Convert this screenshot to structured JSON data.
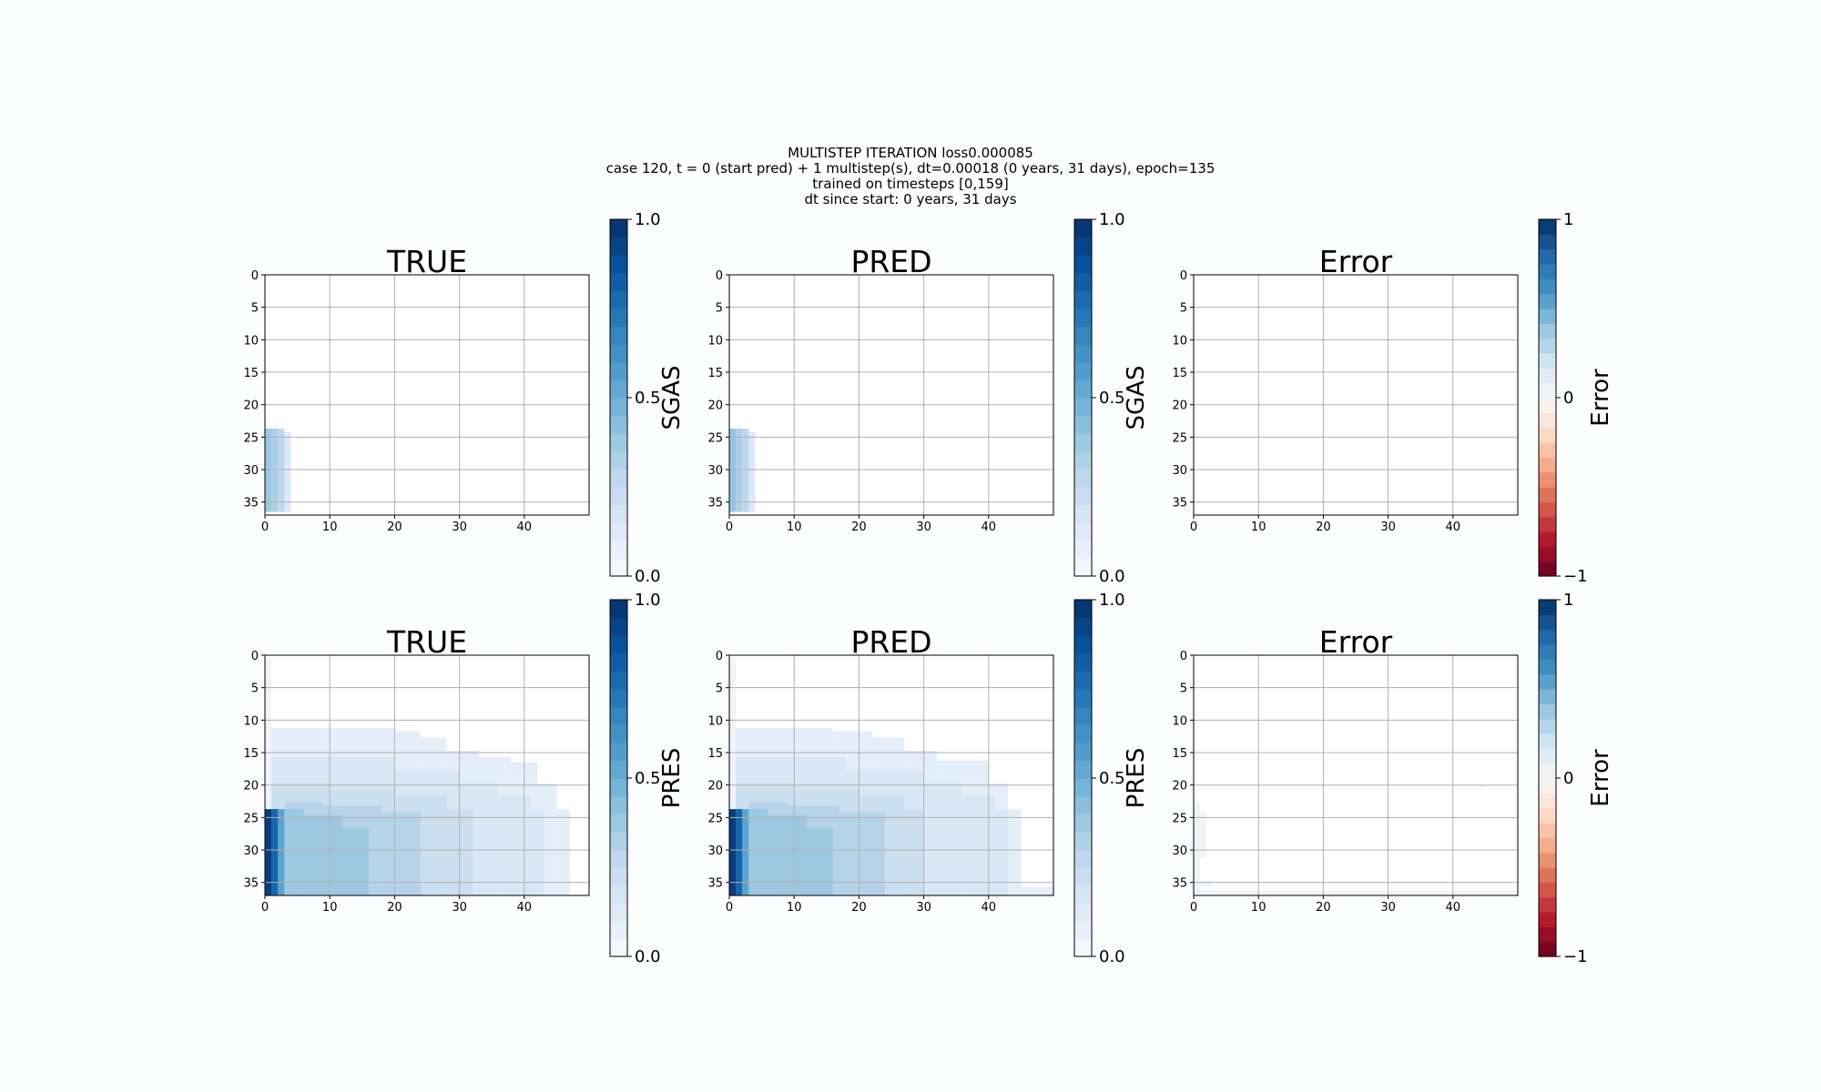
{
  "suptitle": {
    "line1": "MULTISTEP ITERATION loss0.000085",
    "line2": "case 120, t = 0 (start pred) + 1 multistep(s), dt=0.00018 (0 years, 31 days), epoch=135",
    "line3": "trained on timesteps [0,159]",
    "line4": "dt since start: 0 years, 31 days"
  },
  "colors": {
    "blues": [
      "#f7fbff",
      "#deebf7",
      "#c6dbef",
      "#9ecae1",
      "#6baed6",
      "#4292c6",
      "#2171b5",
      "#08519c",
      "#08306b"
    ],
    "rdbu": [
      "#67001f",
      "#b2182b",
      "#d6604d",
      "#f4a582",
      "#fddbc7",
      "#f7f7f7",
      "#d1e5f0",
      "#92c5de",
      "#4393c3",
      "#2166ac",
      "#053061"
    ],
    "grid": "#b0b0b0",
    "background": "#fcfdfe"
  },
  "chart_data": [
    {
      "type": "heatmap",
      "id": "sgas-true",
      "title": "TRUE",
      "xlim": [
        0,
        50
      ],
      "ylim": [
        37,
        0
      ],
      "xticks": [
        0,
        10,
        20,
        30,
        40
      ],
      "yticks": [
        0,
        5,
        10,
        15,
        20,
        25,
        30,
        35
      ],
      "colorbar": {
        "label": "SGAS",
        "ticks": [
          "0.0",
          "0.5",
          "1.0"
        ],
        "range": [
          0,
          1
        ],
        "cmap": "blues"
      },
      "regions": [
        {
          "x": [
            0,
            1
          ],
          "y": [
            23.7,
            36.5
          ],
          "value": 0.38
        },
        {
          "x": [
            1,
            2
          ],
          "y": [
            23.7,
            36.5
          ],
          "value": 0.34
        },
        {
          "x": [
            2,
            3
          ],
          "y": [
            23.7,
            36.5
          ],
          "value": 0.28
        },
        {
          "x": [
            3,
            4
          ],
          "y": [
            24.2,
            36.5
          ],
          "value": 0.14
        }
      ]
    },
    {
      "type": "heatmap",
      "id": "sgas-pred",
      "title": "PRED",
      "xlim": [
        0,
        50
      ],
      "ylim": [
        37,
        0
      ],
      "xticks": [
        0,
        10,
        20,
        30,
        40
      ],
      "yticks": [
        0,
        5,
        10,
        15,
        20,
        25,
        30,
        35
      ],
      "colorbar": {
        "label": "SGAS",
        "ticks": [
          "0.0",
          "0.5",
          "1.0"
        ],
        "range": [
          0,
          1
        ],
        "cmap": "blues"
      },
      "regions": [
        {
          "x": [
            0,
            1
          ],
          "y": [
            23.7,
            36.5
          ],
          "value": 0.4
        },
        {
          "x": [
            1,
            2
          ],
          "y": [
            23.7,
            36.5
          ],
          "value": 0.34
        },
        {
          "x": [
            2,
            3
          ],
          "y": [
            23.7,
            36.5
          ],
          "value": 0.28
        },
        {
          "x": [
            3,
            4
          ],
          "y": [
            24.2,
            36.5
          ],
          "value": 0.14
        }
      ]
    },
    {
      "type": "heatmap",
      "id": "sgas-error",
      "title": "Error",
      "xlim": [
        0,
        50
      ],
      "ylim": [
        37,
        0
      ],
      "xticks": [
        0,
        10,
        20,
        30,
        40
      ],
      "yticks": [
        0,
        5,
        10,
        15,
        20,
        25,
        30,
        35
      ],
      "colorbar": {
        "label": "Error",
        "ticks": [
          "−1",
          "0",
          "1"
        ],
        "range": [
          -1,
          1
        ],
        "cmap": "rdbu"
      },
      "regions": []
    },
    {
      "type": "heatmap",
      "id": "pres-true",
      "title": "TRUE",
      "xlim": [
        0,
        50
      ],
      "ylim": [
        37,
        0
      ],
      "xticks": [
        0,
        10,
        20,
        30,
        40
      ],
      "yticks": [
        0,
        5,
        10,
        15,
        20,
        25,
        30,
        35
      ],
      "colorbar": {
        "label": "PRES",
        "ticks": [
          "0.0",
          "0.5",
          "1.0"
        ],
        "range": [
          0,
          1
        ],
        "cmap": "blues"
      },
      "regions": [
        {
          "x": [
            0,
            20
          ],
          "y": [
            11.2,
            37
          ],
          "value": 0.1
        },
        {
          "x": [
            20,
            24
          ],
          "y": [
            11.7,
            37
          ],
          "value": 0.1
        },
        {
          "x": [
            24,
            28
          ],
          "y": [
            12.7,
            37
          ],
          "value": 0.1
        },
        {
          "x": [
            28,
            33
          ],
          "y": [
            14.7,
            37
          ],
          "value": 0.1
        },
        {
          "x": [
            33,
            38
          ],
          "y": [
            15.7,
            37
          ],
          "value": 0.1
        },
        {
          "x": [
            38,
            42
          ],
          "y": [
            16.5,
            37
          ],
          "value": 0.1
        },
        {
          "x": [
            42,
            45
          ],
          "y": [
            19.8,
            37
          ],
          "value": 0.1
        },
        {
          "x": [
            45,
            47
          ],
          "y": [
            23.7,
            37
          ],
          "value": 0.1
        },
        {
          "x": [
            0,
            20
          ],
          "y": [
            15.7,
            37
          ],
          "value": 0.16
        },
        {
          "x": [
            20,
            30
          ],
          "y": [
            17.7,
            37
          ],
          "value": 0.16
        },
        {
          "x": [
            30,
            36
          ],
          "y": [
            19.7,
            37
          ],
          "value": 0.16
        },
        {
          "x": [
            36,
            41
          ],
          "y": [
            21.7,
            37
          ],
          "value": 0.16
        },
        {
          "x": [
            41,
            43
          ],
          "y": [
            23.7,
            37
          ],
          "value": 0.16
        },
        {
          "x": [
            0,
            10
          ],
          "y": [
            19.7,
            37
          ],
          "value": 0.22
        },
        {
          "x": [
            10,
            20
          ],
          "y": [
            20.7,
            37
          ],
          "value": 0.22
        },
        {
          "x": [
            20,
            28
          ],
          "y": [
            21.7,
            37
          ],
          "value": 0.22
        },
        {
          "x": [
            28,
            32
          ],
          "y": [
            23.7,
            37
          ],
          "value": 0.22
        },
        {
          "x": [
            3,
            9
          ],
          "y": [
            22.7,
            37
          ],
          "value": 0.3
        },
        {
          "x": [
            9,
            18
          ],
          "y": [
            23.2,
            37
          ],
          "value": 0.3
        },
        {
          "x": [
            18,
            24
          ],
          "y": [
            24.2,
            37
          ],
          "value": 0.3
        },
        {
          "x": [
            3,
            6
          ],
          "y": [
            23.7,
            37
          ],
          "value": 0.38
        },
        {
          "x": [
            6,
            12
          ],
          "y": [
            24.7,
            37
          ],
          "value": 0.38
        },
        {
          "x": [
            12,
            16
          ],
          "y": [
            26.7,
            37
          ],
          "value": 0.38
        },
        {
          "x": [
            2,
            3
          ],
          "y": [
            23.7,
            37
          ],
          "value": 0.55
        },
        {
          "x": [
            1,
            2
          ],
          "y": [
            23.7,
            37
          ],
          "value": 0.8
        },
        {
          "x": [
            0,
            1
          ],
          "y": [
            23.7,
            37
          ],
          "value": 0.95
        },
        {
          "x": [
            0,
            1
          ],
          "y": [
            0.5,
            23.7
          ],
          "value": 0.05
        }
      ]
    },
    {
      "type": "heatmap",
      "id": "pres-pred",
      "title": "PRED",
      "xlim": [
        0,
        50
      ],
      "ylim": [
        37,
        0
      ],
      "xticks": [
        0,
        10,
        20,
        30,
        40
      ],
      "yticks": [
        0,
        5,
        10,
        15,
        20,
        25,
        30,
        35
      ],
      "colorbar": {
        "label": "PRES",
        "ticks": [
          "0.0",
          "0.5",
          "1.0"
        ],
        "range": [
          0,
          1
        ],
        "cmap": "blues"
      },
      "regions": [
        {
          "x": [
            0,
            16
          ],
          "y": [
            11.2,
            37
          ],
          "value": 0.1
        },
        {
          "x": [
            16,
            22
          ],
          "y": [
            11.7,
            37
          ],
          "value": 0.1
        },
        {
          "x": [
            22,
            27
          ],
          "y": [
            12.7,
            37
          ],
          "value": 0.1
        },
        {
          "x": [
            27,
            32
          ],
          "y": [
            14.7,
            37
          ],
          "value": 0.1
        },
        {
          "x": [
            32,
            40
          ],
          "y": [
            16.2,
            37
          ],
          "value": 0.1
        },
        {
          "x": [
            40,
            43
          ],
          "y": [
            19.7,
            37
          ],
          "value": 0.1
        },
        {
          "x": [
            43,
            45
          ],
          "y": [
            23.7,
            37
          ],
          "value": 0.1
        },
        {
          "x": [
            45,
            50
          ],
          "y": [
            35.7,
            37
          ],
          "value": 0.1
        },
        {
          "x": [
            0,
            18
          ],
          "y": [
            15.7,
            37
          ],
          "value": 0.16
        },
        {
          "x": [
            18,
            30
          ],
          "y": [
            17.7,
            37
          ],
          "value": 0.16
        },
        {
          "x": [
            30,
            36
          ],
          "y": [
            19.7,
            37
          ],
          "value": 0.16
        },
        {
          "x": [
            36,
            41
          ],
          "y": [
            21.7,
            37
          ],
          "value": 0.16
        },
        {
          "x": [
            41,
            43
          ],
          "y": [
            23.7,
            37
          ],
          "value": 0.16
        },
        {
          "x": [
            0,
            10
          ],
          "y": [
            19.7,
            37
          ],
          "value": 0.22
        },
        {
          "x": [
            10,
            20
          ],
          "y": [
            20.7,
            37
          ],
          "value": 0.22
        },
        {
          "x": [
            20,
            27
          ],
          "y": [
            21.7,
            37
          ],
          "value": 0.22
        },
        {
          "x": [
            27,
            30
          ],
          "y": [
            23.7,
            37
          ],
          "value": 0.22
        },
        {
          "x": [
            3,
            9
          ],
          "y": [
            22.7,
            37
          ],
          "value": 0.3
        },
        {
          "x": [
            9,
            17
          ],
          "y": [
            23.2,
            37
          ],
          "value": 0.3
        },
        {
          "x": [
            17,
            24
          ],
          "y": [
            24.2,
            37
          ],
          "value": 0.3
        },
        {
          "x": [
            3,
            6
          ],
          "y": [
            23.7,
            37
          ],
          "value": 0.38
        },
        {
          "x": [
            6,
            12
          ],
          "y": [
            24.7,
            37
          ],
          "value": 0.38
        },
        {
          "x": [
            12,
            16
          ],
          "y": [
            26.7,
            37
          ],
          "value": 0.38
        },
        {
          "x": [
            2,
            3
          ],
          "y": [
            23.7,
            37
          ],
          "value": 0.55
        },
        {
          "x": [
            1,
            2
          ],
          "y": [
            23.7,
            37
          ],
          "value": 0.8
        },
        {
          "x": [
            0,
            1
          ],
          "y": [
            23.7,
            37
          ],
          "value": 0.95
        },
        {
          "x": [
            0,
            1
          ],
          "y": [
            0.5,
            23.7
          ],
          "value": 0.05
        }
      ]
    },
    {
      "type": "heatmap",
      "id": "pres-error",
      "title": "Error",
      "xlim": [
        0,
        50
      ],
      "ylim": [
        37,
        0
      ],
      "xticks": [
        0,
        10,
        20,
        30,
        40
      ],
      "yticks": [
        0,
        5,
        10,
        15,
        20,
        25,
        30,
        35
      ],
      "colorbar": {
        "label": "Error",
        "ticks": [
          "−1",
          "0",
          "1"
        ],
        "range": [
          -1,
          1
        ],
        "cmap": "rdbu"
      },
      "regions": [
        {
          "x": [
            0,
            1
          ],
          "y": [
            22.5,
            37
          ],
          "value": 0.04
        },
        {
          "x": [
            1,
            2
          ],
          "y": [
            24.2,
            31.2
          ],
          "value": 0.04
        },
        {
          "x": [
            1,
            3
          ],
          "y": [
            34.7,
            35.7
          ],
          "value": 0.04
        },
        {
          "x": [
            0,
            50
          ],
          "y": [
            36.2,
            37
          ],
          "value": 0.03
        },
        {
          "x": [
            44,
            45
          ],
          "y": [
            20.0,
            20.4
          ],
          "value": 0.04
        }
      ]
    }
  ]
}
